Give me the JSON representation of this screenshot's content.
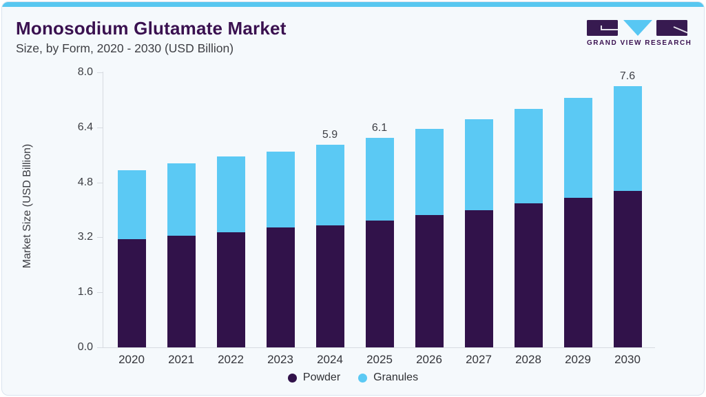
{
  "header": {
    "title": "Monosodium Glutamate Market",
    "subtitle": "Size, by Form, 2020 - 2030 (USD Billion)",
    "logo": {
      "name": "Grand View Research",
      "text": "GRAND VIEW RESEARCH"
    }
  },
  "colors": {
    "accent_bar": "#58c7f0",
    "title_purple": "#3a1150",
    "powder": "#31124a",
    "granules": "#5bc9f4",
    "axis_line": "#d6dae0",
    "text_gray": "#3d3f45",
    "card_bg": "#f5f9fc",
    "card_border": "#d9e3ee"
  },
  "chart_data": {
    "type": "bar",
    "stacked": true,
    "title": "Monosodium Glutamate Market Size, by Form, 2020 - 2030 (USD Billion)",
    "categories": [
      "2020",
      "2021",
      "2022",
      "2023",
      "2024",
      "2025",
      "2026",
      "2027",
      "2028",
      "2029",
      "2030"
    ],
    "series": [
      {
        "name": "Powder",
        "color": "#31124a",
        "values": [
          3.15,
          3.25,
          3.35,
          3.5,
          3.55,
          3.7,
          3.85,
          4.0,
          4.2,
          4.35,
          4.55
        ]
      },
      {
        "name": "Granules",
        "color": "#5bc9f4",
        "values": [
          2.0,
          2.1,
          2.2,
          2.2,
          2.35,
          2.4,
          2.5,
          2.65,
          2.75,
          2.9,
          3.05
        ]
      }
    ],
    "totals": [
      5.15,
      5.35,
      5.55,
      5.7,
      5.9,
      6.1,
      6.35,
      6.65,
      6.95,
      7.25,
      7.6
    ],
    "value_labels": {
      "2024": "5.9",
      "2025": "6.1",
      "2030": "7.6"
    },
    "ylabel": "Market Size (USD Billion)",
    "xlabel": "",
    "yticks": [
      "0.0",
      "1.6",
      "3.2",
      "4.8",
      "6.4",
      "8.0"
    ],
    "ylim": [
      0.0,
      8.0
    ],
    "grid": false,
    "legend_position": "bottom"
  },
  "legend": {
    "items": [
      {
        "label": "Powder",
        "color": "#31124a"
      },
      {
        "label": "Granules",
        "color": "#5bc9f4"
      }
    ]
  }
}
